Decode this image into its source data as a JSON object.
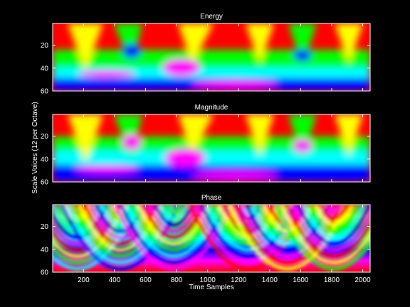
{
  "chart_data": [
    {
      "type": "heatmap",
      "title": "Energy",
      "xlabel": "",
      "ylabel": "",
      "xlim": [
        1,
        2048
      ],
      "ylim": [
        1,
        60
      ],
      "y_reversed": true,
      "yticks": [
        "20",
        "40",
        "60"
      ],
      "colormap": "hsv",
      "dominant_color_top": "#ff0000",
      "blobs": [
        {
          "x": 500,
          "y": 22,
          "color": "blue"
        },
        {
          "x": 820,
          "y": 38,
          "color": "magenta"
        },
        {
          "x": 1600,
          "y": 28,
          "color": "blue"
        }
      ]
    },
    {
      "type": "heatmap",
      "title": "Magnitude",
      "xlabel": "",
      "ylabel": "Scale Voices (12 per Octave)",
      "xlim": [
        1,
        2048
      ],
      "ylim": [
        1,
        60
      ],
      "y_reversed": true,
      "yticks": [
        "20",
        "40",
        "60"
      ],
      "colormap": "hsv",
      "dominant_color_top": "#ff0000",
      "blobs": [
        {
          "x": 500,
          "y": 22,
          "color": "magenta"
        },
        {
          "x": 830,
          "y": 38,
          "color": "magenta"
        },
        {
          "x": 1620,
          "y": 26,
          "color": "magenta"
        }
      ]
    },
    {
      "type": "heatmap",
      "title": "Phase",
      "xlabel": "Time Samples",
      "ylabel": "",
      "xlim": [
        1,
        2048
      ],
      "ylim": [
        1,
        60
      ],
      "y_reversed": true,
      "xticks": [
        "200",
        "400",
        "600",
        "800",
        "1000",
        "1200",
        "1400",
        "1600",
        "1800",
        "2000"
      ],
      "yticks": [
        "20",
        "40",
        "60"
      ],
      "colormap": "hsv",
      "pattern": "phase fringes"
    }
  ],
  "colors": {
    "background": "#000000",
    "axes": "#ffffff",
    "text": "#ffffff"
  }
}
